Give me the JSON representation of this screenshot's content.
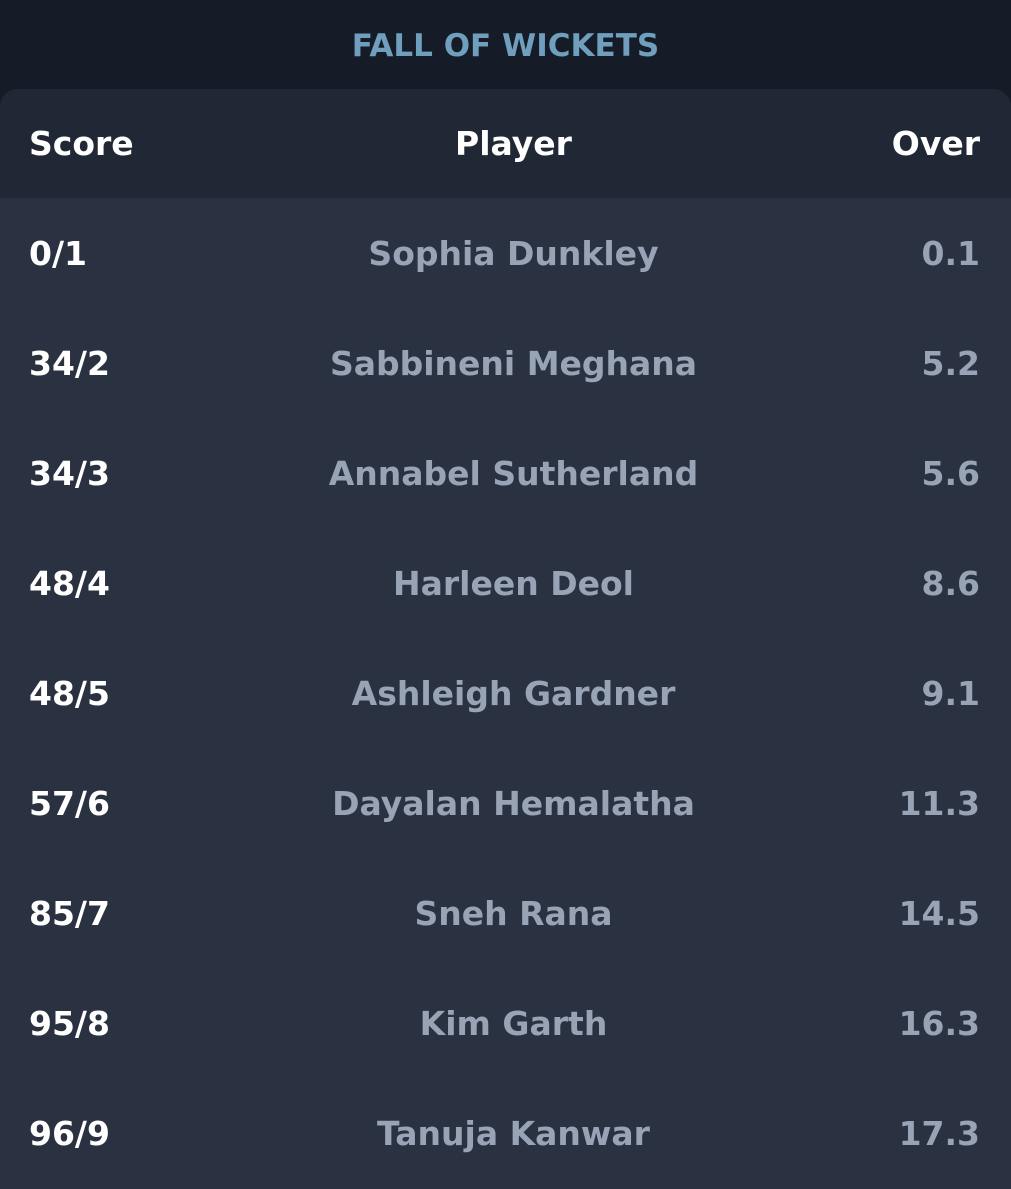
{
  "section": {
    "title": "FALL OF WICKETS"
  },
  "table": {
    "headers": {
      "score": "Score",
      "player": "Player",
      "over": "Over"
    },
    "rows": [
      {
        "score": "0/1",
        "player": "Sophia Dunkley",
        "over": "0.1"
      },
      {
        "score": "34/2",
        "player": "Sabbineni Meghana",
        "over": "5.2"
      },
      {
        "score": "34/3",
        "player": "Annabel Sutherland",
        "over": "5.6"
      },
      {
        "score": "48/4",
        "player": "Harleen Deol",
        "over": "8.6"
      },
      {
        "score": "48/5",
        "player": "Ashleigh Gardner",
        "over": "9.1"
      },
      {
        "score": "57/6",
        "player": "Dayalan Hemalatha",
        "over": "11.3"
      },
      {
        "score": "85/7",
        "player": "Sneh Rana",
        "over": "14.5"
      },
      {
        "score": "95/8",
        "player": "Kim Garth",
        "over": "16.3"
      },
      {
        "score": "96/9",
        "player": "Tanuja Kanwar",
        "over": "17.3"
      }
    ]
  },
  "colors": {
    "page_background": "#151c28",
    "card_background": "#2a3140",
    "header_background": "#212835",
    "title_color": "#6f9fbc",
    "primary_text": "#ffffff",
    "secondary_text": "#99a3b6"
  }
}
